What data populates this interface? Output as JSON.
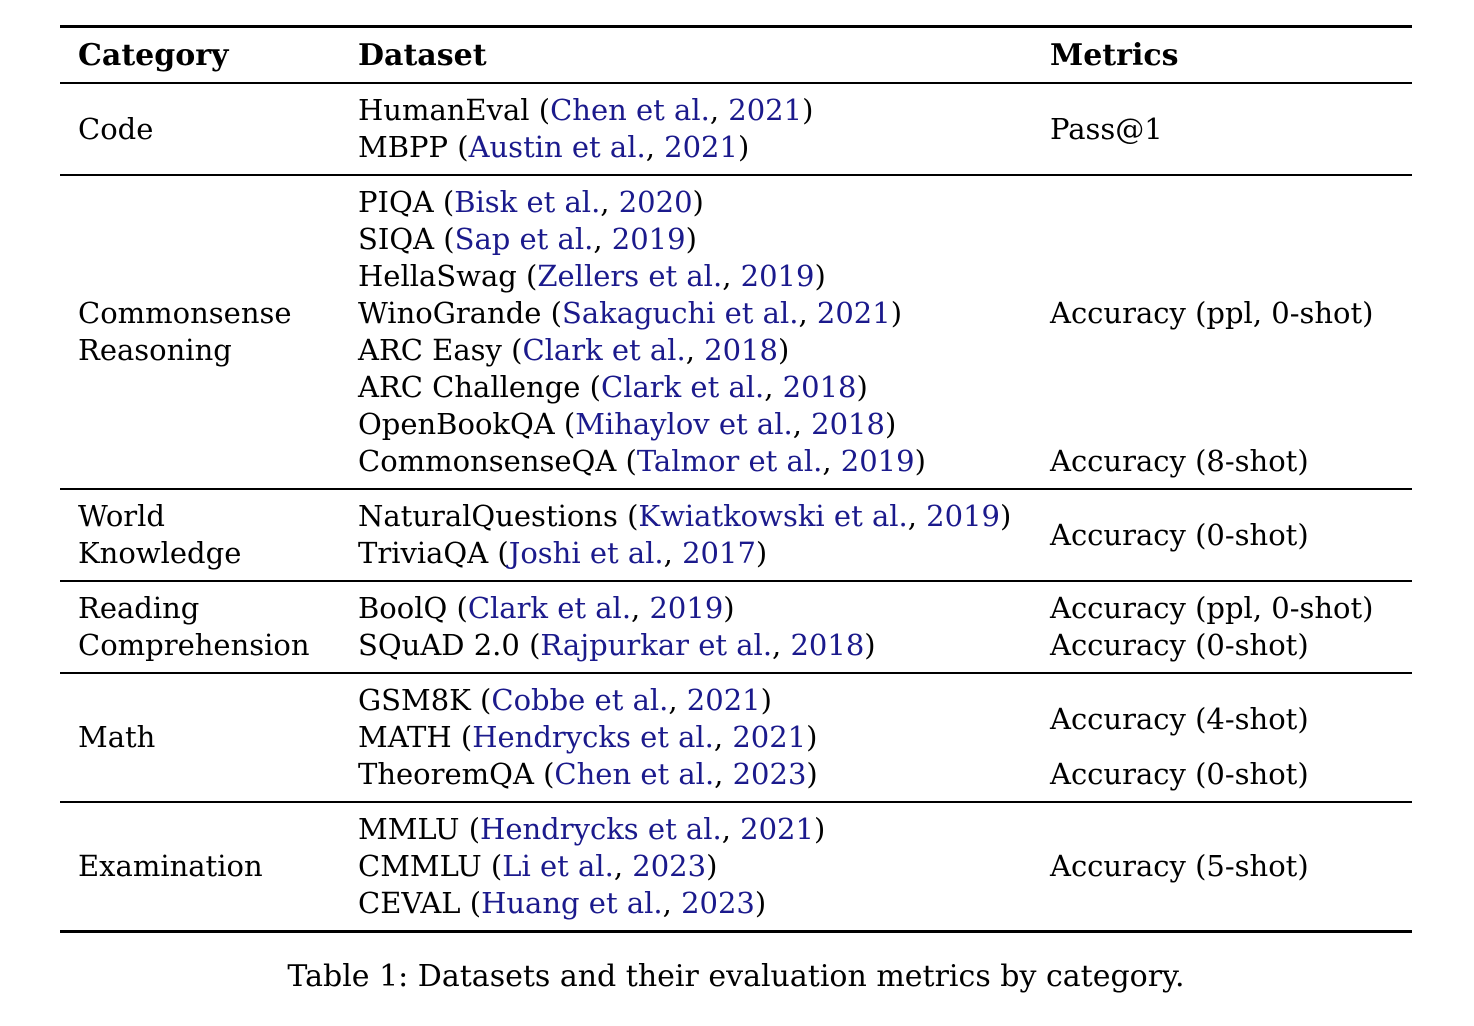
{
  "table": {
    "headers": [
      "Category",
      "Dataset",
      "Metrics"
    ],
    "caption": "Table 1: Datasets and their evaluation metrics by category.",
    "link_color": "#1b1a8c",
    "sections": [
      {
        "category_lines": [
          "Code"
        ],
        "dataset_lines": [
          {
            "name": "HumanEval",
            "cite_author": "Chen et al.",
            "cite_year": "2021"
          },
          {
            "name": "MBPP",
            "cite_author": "Austin et al.",
            "cite_year": "2021"
          }
        ],
        "metric_blocks": [
          {
            "label": "Pass@1",
            "rows": 2
          }
        ]
      },
      {
        "category_lines": [
          "Commonsense",
          "Reasoning"
        ],
        "dataset_lines": [
          {
            "name": "PIQA",
            "cite_author": "Bisk et al.",
            "cite_year": "2020"
          },
          {
            "name": "SIQA",
            "cite_author": "Sap et al.",
            "cite_year": "2019"
          },
          {
            "name": "HellaSwag",
            "cite_author": "Zellers et al.",
            "cite_year": "2019"
          },
          {
            "name": "WinoGrande",
            "cite_author": "Sakaguchi et al.",
            "cite_year": "2021"
          },
          {
            "name": "ARC Easy",
            "cite_author": "Clark et al.",
            "cite_year": "2018"
          },
          {
            "name": "ARC Challenge",
            "cite_author": "Clark et al.",
            "cite_year": "2018"
          },
          {
            "name": "OpenBookQA",
            "cite_author": "Mihaylov et al.",
            "cite_year": "2018"
          },
          {
            "name": "CommonsenseQA",
            "cite_author": "Talmor et al.",
            "cite_year": "2019"
          }
        ],
        "metric_blocks": [
          {
            "label": "Accuracy (ppl, 0-shot)",
            "rows": 7
          },
          {
            "label": "Accuracy (8-shot)",
            "rows": 1
          }
        ]
      },
      {
        "category_lines": [
          "World",
          "Knowledge"
        ],
        "dataset_lines": [
          {
            "name": "NaturalQuestions",
            "cite_author": "Kwiatkowski et al.",
            "cite_year": "2019"
          },
          {
            "name": "TriviaQA",
            "cite_author": "Joshi et al.",
            "cite_year": "2017"
          }
        ],
        "metric_blocks": [
          {
            "label": "Accuracy (0-shot)",
            "rows": 2
          }
        ]
      },
      {
        "category_lines": [
          "Reading",
          "Comprehension"
        ],
        "dataset_lines": [
          {
            "name": "BoolQ",
            "cite_author": "Clark et al.",
            "cite_year": "2019"
          },
          {
            "name": "SQuAD 2.0",
            "cite_author": "Rajpurkar et al.",
            "cite_year": "2018"
          }
        ],
        "metric_blocks": [
          {
            "label": "Accuracy (ppl, 0-shot)",
            "rows": 1
          },
          {
            "label": "Accuracy (0-shot)",
            "rows": 1
          }
        ]
      },
      {
        "category_lines": [
          "Math"
        ],
        "dataset_lines": [
          {
            "name": "GSM8K",
            "cite_author": "Cobbe et al.",
            "cite_year": "2021"
          },
          {
            "name": "MATH",
            "cite_author": "Hendrycks et al.",
            "cite_year": "2021"
          },
          {
            "name": "TheoremQA",
            "cite_author": "Chen et al.",
            "cite_year": "2023"
          }
        ],
        "metric_blocks": [
          {
            "label": "Accuracy (4-shot)",
            "rows": 2
          },
          {
            "label": "Accuracy (0-shot)",
            "rows": 1
          }
        ]
      },
      {
        "category_lines": [
          "Examination"
        ],
        "dataset_lines": [
          {
            "name": "MMLU",
            "cite_author": "Hendrycks et al.",
            "cite_year": "2021"
          },
          {
            "name": "CMMLU",
            "cite_author": "Li et al.",
            "cite_year": "2023"
          },
          {
            "name": "CEVAL",
            "cite_author": "Huang et al.",
            "cite_year": "2023"
          }
        ],
        "metric_blocks": [
          {
            "label": "Accuracy (5-shot)",
            "rows": 3
          }
        ]
      }
    ]
  }
}
